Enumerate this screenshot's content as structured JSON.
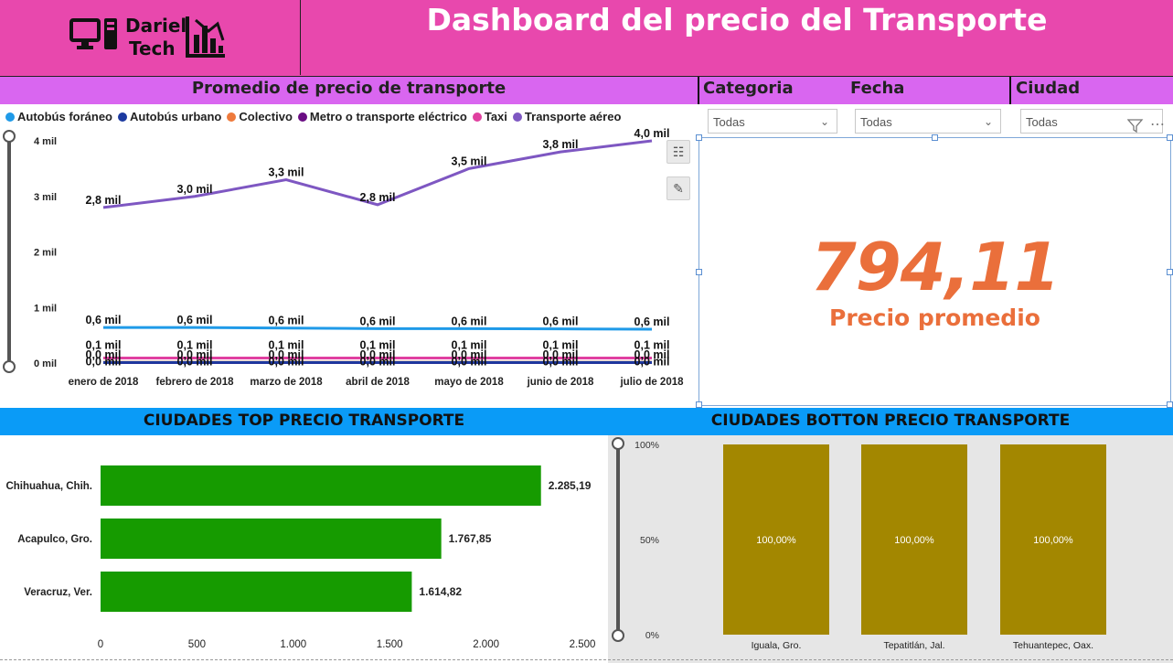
{
  "header": {
    "title": "Dashboard del precio del Transporte",
    "logo_line1": "Dariel",
    "logo_line2": "Tech"
  },
  "line_section": {
    "title": "Promedio de precio de transporte",
    "legend": [
      {
        "label": "Autobús foráneo",
        "color": "#1f9ae8"
      },
      {
        "label": "Autobús urbano",
        "color": "#1c3aa0"
      },
      {
        "label": "Colectivo",
        "color": "#ee7a3c"
      },
      {
        "label": "Metro o transporte eléctrico",
        "color": "#6a0d83"
      },
      {
        "label": "Taxi",
        "color": "#e040a0"
      },
      {
        "label": "Transporte aéreo",
        "color": "#7e57c2"
      }
    ]
  },
  "filters": [
    {
      "label": "Categoria",
      "value": "Todas"
    },
    {
      "label": "Fecha",
      "value": "Todas"
    },
    {
      "label": "Ciudad",
      "value": "Todas"
    }
  ],
  "kpi": {
    "value": "794,11",
    "label": "Precio promedio",
    "color": "#ea6f3b"
  },
  "top_section": {
    "title": "CIUDADES TOP PRECIO TRANSPORTE"
  },
  "bottom_section": {
    "title": "CIUDADES BOTTON PRECIO TRANSPORTE"
  },
  "chart_data": [
    {
      "type": "line",
      "title": "Promedio de precio de transporte",
      "categories": [
        "enero de 2018",
        "febrero de 2018",
        "marzo de 2018",
        "abril de 2018",
        "mayo de 2018",
        "junio de 2018",
        "julio de 2018"
      ],
      "yticks": [
        "0 mil",
        "1 mil",
        "2 mil",
        "3 mil",
        "4 mil"
      ],
      "ylim": [
        0,
        4000
      ],
      "series": [
        {
          "name": "Transporte aéreo",
          "color": "#7e57c2",
          "values": [
            2800,
            3000,
            3300,
            2850,
            3500,
            3800,
            4000
          ],
          "labels": [
            "2,8 mil",
            "3,0 mil",
            "3,3 mil",
            "2,8 mil",
            "3,5 mil",
            "3,8 mil",
            "4,0 mil"
          ]
        },
        {
          "name": "Autobús foráneo",
          "color": "#1f9ae8",
          "values": [
            640,
            640,
            630,
            620,
            620,
            615,
            610
          ],
          "labels": [
            "0,6 mil",
            "0,6 mil",
            "0,6 mil",
            "0,6 mil",
            "0,6 mil",
            "0,6 mil",
            "0,6 mil"
          ]
        },
        {
          "name": "Taxi",
          "color": "#e040a0",
          "values": [
            90,
            90,
            90,
            90,
            90,
            90,
            90
          ],
          "labels": [
            "0,1 mil",
            "0,1 mil",
            "0,1 mil",
            "0,1 mil",
            "0,1 mil",
            "0,1 mil",
            "0,1 mil"
          ]
        },
        {
          "name": "Colectivo",
          "color": "#ee7a3c",
          "values": [
            15,
            15,
            15,
            15,
            15,
            15,
            15
          ],
          "labels": [
            "0,0 mil",
            "0,0 mil",
            "0,0 mil",
            "0,0 mil",
            "0,0 mil",
            "0,0 mil",
            "0,0 mil"
          ]
        },
        {
          "name": "Metro o transporte eléctrico",
          "color": "#6a0d83",
          "values": [
            8,
            8,
            8,
            8,
            8,
            8,
            8
          ],
          "labels": [
            "0,0 mil",
            "0,0 mil",
            "0,0 mil",
            "0,0 mil",
            "0,0 mil",
            "0,0 mil",
            "0,0 mil"
          ]
        },
        {
          "name": "Autobús urbano",
          "color": "#1c3aa0",
          "values": [
            10,
            10,
            10,
            10,
            10,
            10,
            10
          ],
          "labels": []
        }
      ]
    },
    {
      "type": "bar",
      "orientation": "horizontal",
      "title": "CIUDADES TOP PRECIO TRANSPORTE",
      "categories": [
        "Chihuahua, Chih.",
        "Acapulco, Gro.",
        "Veracruz, Ver."
      ],
      "values": [
        2285.19,
        1767.85,
        1614.82
      ],
      "labels": [
        "2.285,19",
        "1.767,85",
        "1.614,82"
      ],
      "xticks": [
        "0",
        "500",
        "1.000",
        "1.500",
        "2.000",
        "2.500"
      ],
      "xlim": [
        0,
        2500
      ],
      "color": "#169b00"
    },
    {
      "type": "bar",
      "orientation": "vertical",
      "title": "CIUDADES BOTTON PRECIO TRANSPORTE",
      "categories": [
        "Iguala, Gro.",
        "Tepatitlán, Jal.",
        "Tehuantepec, Oax."
      ],
      "values": [
        100,
        100,
        100
      ],
      "labels": [
        "100,00%",
        "100,00%",
        "100,00%"
      ],
      "yticks": [
        "0%",
        "50%",
        "100%"
      ],
      "ylim": [
        0,
        100
      ],
      "color": "#a38700"
    }
  ]
}
